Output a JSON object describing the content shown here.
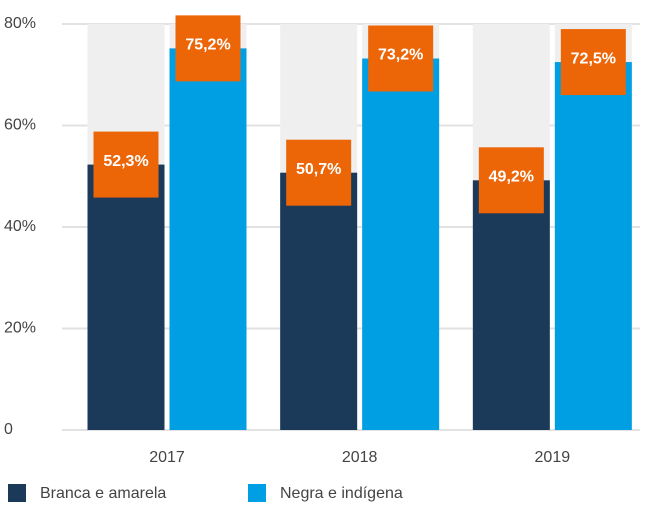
{
  "chart_data": {
    "type": "bar",
    "categories": [
      "2017",
      "2018",
      "2019"
    ],
    "series": [
      {
        "name": "Branca e amarela",
        "color": "#1b3a5a",
        "values": [
          52.3,
          50.7,
          49.2
        ],
        "value_labels": [
          "52,3%",
          "50,7%",
          "49,2%"
        ]
      },
      {
        "name": "Negra e indígena",
        "color": "#009fe3",
        "values": [
          75.2,
          73.2,
          72.5
        ],
        "value_labels": [
          "75,2%",
          "73,2%",
          "72,5%"
        ]
      }
    ],
    "ylim": [
      0,
      80
    ],
    "yticks": [
      0,
      {
        "value": 20,
        "label": "20%"
      },
      {
        "value": 40,
        "label": "40%"
      },
      {
        "value": 60,
        "label": "60%"
      },
      {
        "value": 80,
        "label": "80%"
      }
    ],
    "grid": true
  }
}
